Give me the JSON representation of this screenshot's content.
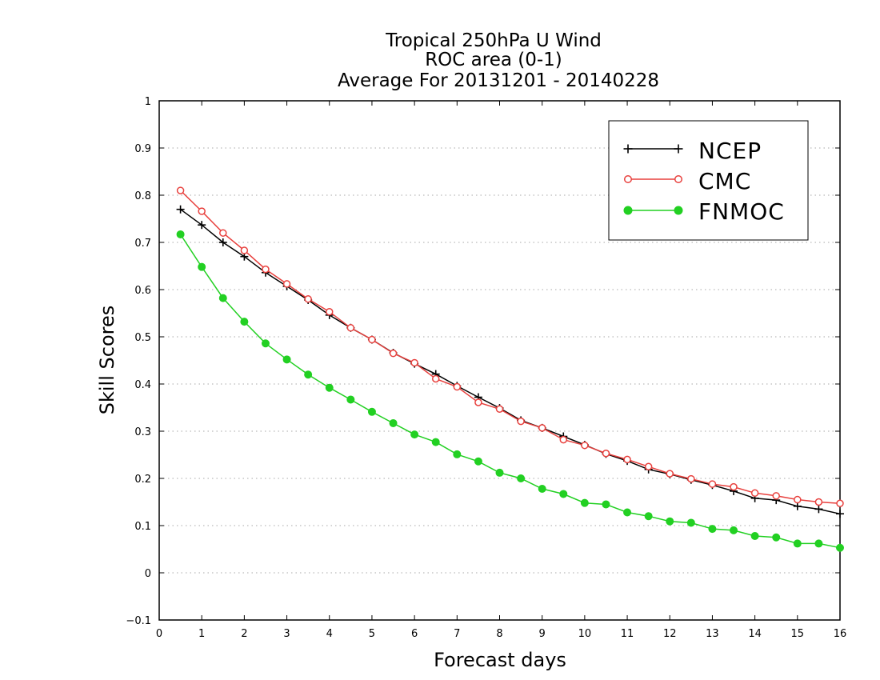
{
  "chart_data": {
    "type": "line",
    "title": [
      "Tropical 250hPa U Wind",
      "ROC area (0-1)",
      "Average For 20131201 - 20140228"
    ],
    "xlabel": "Forecast days",
    "ylabel": "Skill Scores",
    "xlim": [
      0,
      16
    ],
    "ylim": [
      -0.1,
      1
    ],
    "x_ticks": [
      "0",
      "1",
      "2",
      "3",
      "4",
      "5",
      "6",
      "7",
      "8",
      "9",
      "10",
      "11",
      "12",
      "13",
      "14",
      "15",
      "16"
    ],
    "y_ticks": [
      "−0.1",
      "0",
      "0.1",
      "0.2",
      "0.3",
      "0.4",
      "0.5",
      "0.6",
      "0.7",
      "0.8",
      "0.9",
      "1"
    ],
    "grid": "horizontal dotted",
    "legend_position": "top-right",
    "x": [
      0.5,
      1,
      1.5,
      2,
      2.5,
      3,
      3.5,
      4,
      4.5,
      5,
      5.5,
      6,
      6.5,
      7,
      7.5,
      8,
      8.5,
      9,
      9.5,
      10,
      10.5,
      11,
      11.5,
      12,
      12.5,
      13,
      13.5,
      14,
      14.5,
      15,
      15.5,
      16
    ],
    "series": [
      {
        "name": "NCEP",
        "color": "#000000",
        "marker": "plus",
        "values": [
          0.77,
          0.737,
          0.7,
          0.67,
          0.636,
          0.607,
          0.578,
          0.546,
          0.519,
          0.494,
          0.466,
          0.443,
          0.421,
          0.396,
          0.372,
          0.349,
          0.323,
          0.307,
          0.289,
          0.271,
          0.252,
          0.237,
          0.219,
          0.209,
          0.197,
          0.186,
          0.173,
          0.158,
          0.154,
          0.141,
          0.135,
          0.125
        ]
      },
      {
        "name": "CMC",
        "color": "#e8413e",
        "marker": "open-circle",
        "values": [
          0.81,
          0.766,
          0.72,
          0.683,
          0.643,
          0.612,
          0.58,
          0.553,
          0.519,
          0.494,
          0.465,
          0.445,
          0.411,
          0.394,
          0.361,
          0.347,
          0.321,
          0.307,
          0.282,
          0.27,
          0.253,
          0.24,
          0.225,
          0.21,
          0.199,
          0.188,
          0.182,
          0.169,
          0.163,
          0.155,
          0.15,
          0.147
        ]
      },
      {
        "name": "FNMOC",
        "color": "#22d022",
        "marker": "filled-circle",
        "values": [
          0.717,
          0.648,
          0.582,
          0.532,
          0.486,
          0.452,
          0.42,
          0.392,
          0.367,
          0.341,
          0.317,
          0.293,
          0.277,
          0.251,
          0.236,
          0.212,
          0.2,
          0.178,
          0.167,
          0.148,
          0.145,
          0.128,
          0.12,
          0.109,
          0.106,
          0.093,
          0.09,
          0.078,
          0.075,
          0.062,
          0.062,
          0.053
        ]
      }
    ]
  }
}
